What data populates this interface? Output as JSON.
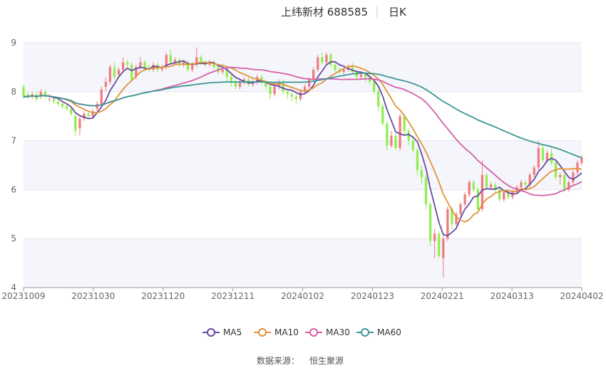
{
  "chart_data": {
    "type": "candlestick",
    "title": "上纬新材 688585",
    "period": "日K",
    "source_label": "数据来源：",
    "source_name": "恒生聚源",
    "x_ticks": [
      "20231009",
      "20231030",
      "20231120",
      "20231211",
      "20240102",
      "20240123",
      "20240221",
      "20240313",
      "20240402"
    ],
    "y_ticks": [
      4,
      5,
      6,
      7,
      8,
      9
    ],
    "ylim": [
      4,
      9
    ],
    "colors": {
      "up": "#f07c82",
      "down": "#90ee50",
      "ma5": "#6a4aa0",
      "ma10": "#e0933a",
      "ma30": "#d45fa8",
      "ma60": "#3d9696"
    },
    "legend": [
      {
        "key": "ma5",
        "label": "MA5"
      },
      {
        "key": "ma10",
        "label": "MA10"
      },
      {
        "key": "ma30",
        "label": "MA30"
      },
      {
        "key": "ma60",
        "label": "MA60"
      }
    ],
    "candles": [
      [
        8.1,
        7.9,
        8.15,
        7.85
      ],
      [
        7.95,
        7.9,
        8.0,
        7.85
      ],
      [
        7.9,
        7.95,
        8.0,
        7.85
      ],
      [
        7.95,
        7.85,
        8.0,
        7.8
      ],
      [
        7.9,
        8.0,
        8.05,
        7.85
      ],
      [
        8.0,
        7.9,
        8.05,
        7.85
      ],
      [
        7.85,
        7.85,
        7.95,
        7.8
      ],
      [
        7.85,
        7.8,
        7.9,
        7.75
      ],
      [
        7.8,
        7.75,
        7.85,
        7.7
      ],
      [
        7.75,
        7.7,
        7.8,
        7.65
      ],
      [
        7.7,
        7.65,
        7.75,
        7.6
      ],
      [
        7.65,
        7.55,
        7.7,
        7.5
      ],
      [
        7.5,
        7.2,
        7.55,
        7.1
      ],
      [
        7.25,
        7.45,
        7.5,
        7.1
      ],
      [
        7.45,
        7.55,
        7.6,
        7.4
      ],
      [
        7.55,
        7.5,
        7.6,
        7.45
      ],
      [
        7.5,
        7.6,
        7.65,
        7.45
      ],
      [
        7.65,
        7.75,
        7.8,
        7.6
      ],
      [
        7.75,
        8.05,
        8.1,
        7.7
      ],
      [
        8.1,
        8.2,
        8.3,
        8.0
      ],
      [
        8.2,
        8.5,
        8.55,
        8.15
      ],
      [
        8.5,
        8.3,
        8.6,
        8.25
      ],
      [
        8.35,
        8.45,
        8.5,
        8.3
      ],
      [
        8.45,
        8.6,
        8.7,
        8.4
      ],
      [
        8.6,
        8.55,
        8.65,
        8.5
      ],
      [
        8.55,
        8.25,
        8.6,
        8.2
      ],
      [
        8.3,
        8.5,
        8.55,
        8.25
      ],
      [
        8.5,
        8.6,
        8.7,
        8.45
      ],
      [
        8.6,
        8.5,
        8.65,
        8.45
      ],
      [
        8.5,
        8.45,
        8.55,
        8.4
      ],
      [
        8.45,
        8.55,
        8.6,
        8.4
      ],
      [
        8.55,
        8.45,
        8.6,
        8.4
      ],
      [
        8.45,
        8.5,
        8.55,
        8.4
      ],
      [
        8.5,
        8.75,
        8.8,
        8.45
      ],
      [
        8.75,
        8.6,
        8.85,
        8.55
      ],
      [
        8.6,
        8.65,
        8.7,
        8.55
      ],
      [
        8.65,
        8.55,
        8.7,
        8.5
      ],
      [
        8.55,
        8.6,
        8.65,
        8.5
      ],
      [
        8.6,
        8.45,
        8.65,
        8.4
      ],
      [
        8.45,
        8.55,
        8.6,
        8.4
      ],
      [
        8.55,
        8.7,
        8.9,
        8.5
      ],
      [
        8.7,
        8.6,
        8.75,
        8.55
      ],
      [
        8.6,
        8.55,
        8.65,
        8.5
      ],
      [
        8.55,
        8.6,
        8.65,
        8.5
      ],
      [
        8.6,
        8.5,
        8.65,
        8.45
      ],
      [
        8.5,
        8.4,
        8.55,
        8.35
      ],
      [
        8.4,
        8.45,
        8.5,
        8.35
      ],
      [
        8.45,
        8.3,
        8.5,
        8.2
      ],
      [
        8.3,
        8.2,
        8.35,
        8.1
      ],
      [
        8.2,
        8.1,
        8.25,
        8.05
      ],
      [
        8.1,
        8.2,
        8.25,
        8.05
      ],
      [
        8.2,
        8.25,
        8.3,
        8.15
      ],
      [
        8.25,
        8.15,
        8.3,
        8.1
      ],
      [
        8.15,
        8.2,
        8.25,
        8.1
      ],
      [
        8.2,
        8.3,
        8.35,
        8.15
      ],
      [
        8.3,
        8.2,
        8.35,
        8.15
      ],
      [
        8.2,
        8.1,
        8.25,
        8.05
      ],
      [
        8.1,
        7.95,
        8.15,
        7.85
      ],
      [
        7.95,
        8.1,
        8.2,
        7.9
      ],
      [
        8.1,
        8.2,
        8.25,
        8.05
      ],
      [
        8.2,
        8.0,
        8.25,
        7.95
      ],
      [
        8.0,
        7.95,
        8.05,
        7.85
      ],
      [
        7.95,
        7.9,
        8.0,
        7.8
      ],
      [
        7.9,
        7.85,
        7.95,
        7.75
      ],
      [
        7.85,
        8.0,
        8.05,
        7.8
      ],
      [
        8.0,
        8.1,
        8.15,
        7.95
      ],
      [
        8.1,
        8.25,
        8.3,
        8.05
      ],
      [
        8.25,
        8.45,
        8.5,
        8.2
      ],
      [
        8.45,
        8.7,
        8.75,
        8.4
      ],
      [
        8.7,
        8.6,
        8.8,
        8.55
      ],
      [
        8.6,
        8.75,
        8.8,
        8.55
      ],
      [
        8.75,
        8.55,
        8.8,
        8.5
      ],
      [
        8.55,
        8.45,
        8.6,
        8.4
      ],
      [
        8.45,
        8.4,
        8.5,
        8.35
      ],
      [
        8.4,
        8.45,
        8.5,
        8.35
      ],
      [
        8.45,
        8.5,
        8.55,
        8.4
      ],
      [
        8.5,
        8.4,
        8.6,
        8.35
      ],
      [
        8.4,
        8.3,
        8.45,
        8.25
      ],
      [
        8.3,
        8.35,
        8.4,
        8.25
      ],
      [
        8.35,
        8.3,
        8.4,
        8.2
      ],
      [
        8.3,
        8.2,
        8.35,
        8.15
      ],
      [
        8.2,
        8.0,
        8.25,
        7.95
      ],
      [
        8.0,
        7.7,
        8.05,
        7.6
      ],
      [
        7.7,
        7.35,
        7.75,
        7.3
      ],
      [
        7.35,
        6.9,
        7.4,
        6.8
      ],
      [
        6.9,
        7.1,
        7.2,
        6.85
      ],
      [
        7.1,
        6.85,
        7.15,
        6.8
      ],
      [
        6.85,
        7.5,
        7.55,
        6.8
      ],
      [
        7.5,
        7.2,
        7.55,
        7.1
      ],
      [
        7.2,
        7.0,
        7.25,
        6.9
      ],
      [
        7.0,
        6.8,
        7.1,
        6.75
      ],
      [
        6.8,
        6.4,
        6.85,
        6.3
      ],
      [
        6.4,
        6.25,
        6.5,
        6.1
      ],
      [
        6.25,
        5.7,
        6.3,
        5.6
      ],
      [
        5.7,
        4.95,
        5.75,
        4.85
      ],
      [
        4.95,
        5.1,
        5.2,
        4.6
      ],
      [
        5.1,
        4.65,
        5.15,
        4.6
      ],
      [
        4.6,
        5.0,
        5.05,
        4.2
      ],
      [
        5.0,
        5.6,
        5.65,
        4.95
      ],
      [
        5.6,
        5.3,
        5.65,
        5.2
      ],
      [
        5.3,
        5.5,
        5.55,
        5.25
      ],
      [
        5.5,
        5.7,
        5.75,
        5.45
      ],
      [
        5.7,
        5.9,
        5.95,
        5.65
      ],
      [
        5.9,
        6.15,
        6.2,
        5.85
      ],
      [
        6.15,
        6.0,
        6.2,
        5.95
      ],
      [
        6.0,
        5.6,
        6.05,
        5.5
      ],
      [
        5.6,
        6.3,
        6.6,
        5.55
      ],
      [
        6.3,
        6.05,
        6.35,
        6.0
      ],
      [
        6.05,
        6.1,
        6.15,
        6.0
      ],
      [
        6.1,
        6.0,
        6.15,
        5.95
      ],
      [
        6.0,
        5.8,
        6.05,
        5.75
      ],
      [
        5.8,
        5.95,
        6.0,
        5.75
      ],
      [
        5.95,
        5.85,
        6.0,
        5.8
      ],
      [
        5.85,
        5.95,
        6.0,
        5.8
      ],
      [
        5.95,
        6.05,
        6.1,
        5.9
      ],
      [
        6.05,
        6.15,
        6.2,
        6.0
      ],
      [
        6.15,
        6.1,
        6.2,
        6.05
      ],
      [
        6.1,
        6.3,
        6.35,
        6.05
      ],
      [
        6.3,
        6.45,
        6.5,
        6.25
      ],
      [
        6.45,
        6.85,
        7.0,
        6.4
      ],
      [
        6.85,
        6.6,
        6.9,
        6.55
      ],
      [
        6.6,
        6.75,
        6.8,
        6.55
      ],
      [
        6.75,
        6.55,
        6.85,
        6.5
      ],
      [
        6.55,
        6.25,
        6.6,
        6.2
      ],
      [
        6.25,
        6.3,
        6.35,
        6.1
      ],
      [
        6.3,
        6.0,
        6.35,
        5.95
      ],
      [
        6.0,
        6.15,
        6.2,
        5.95
      ],
      [
        6.15,
        6.35,
        6.4,
        6.1
      ],
      [
        6.35,
        6.55,
        6.6,
        6.3
      ],
      [
        6.55,
        6.65,
        6.7,
        6.5
      ]
    ]
  }
}
